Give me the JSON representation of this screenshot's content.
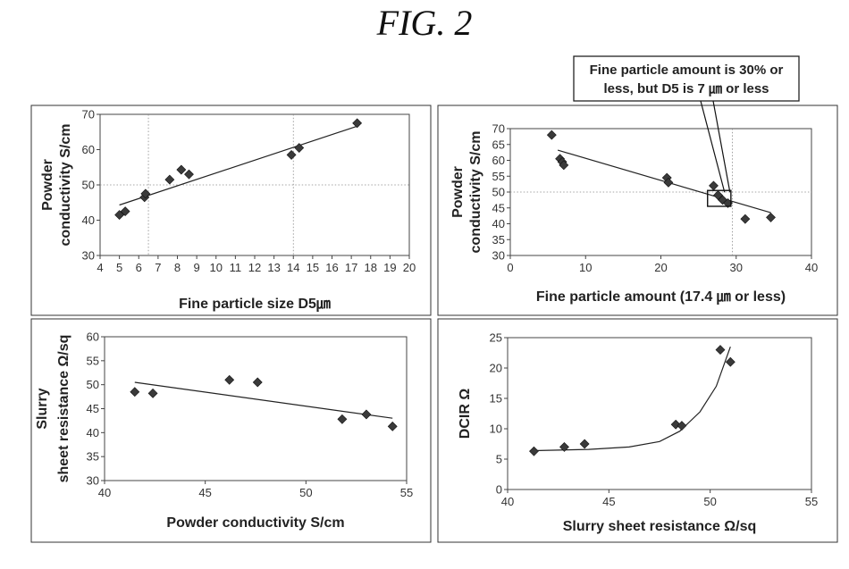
{
  "figure": {
    "title": "FIG. 2"
  },
  "chart_data": [
    {
      "type": "scatter",
      "xlabel": "Fine particle size D5㎛",
      "ylabel": [
        "Powder",
        "conductivity S/cm"
      ],
      "xlim": [
        4,
        20
      ],
      "ylim": [
        30,
        70
      ],
      "xticks": [
        4,
        5,
        6,
        7,
        8,
        9,
        10,
        11,
        12,
        13,
        14,
        15,
        16,
        17,
        18,
        19,
        20
      ],
      "yticks": [
        30,
        40,
        50,
        60,
        70
      ],
      "grid": "dashed at x=6.5, x=14, y=50",
      "trendline": "linear",
      "series": [
        {
          "x": [
            5.0,
            5.3,
            6.3,
            6.35,
            7.6,
            8.2,
            8.6,
            13.9,
            14.3,
            17.3
          ],
          "y": [
            41.5,
            42.5,
            46.5,
            47.5,
            51.5,
            54.3,
            53.0,
            58.5,
            60.5,
            67.5
          ]
        }
      ],
      "trend": [
        [
          5,
          44.3
        ],
        [
          17.4,
          66.8
        ]
      ]
    },
    {
      "type": "scatter",
      "xlabel": "Fine particle amount (17.4 ㎛ or less)",
      "ylabel": [
        "Powder",
        "conductivity S/cm"
      ],
      "xlim": [
        0,
        40
      ],
      "ylim": [
        30,
        70
      ],
      "xticks": [
        0,
        10,
        20,
        30,
        40
      ],
      "yticks": [
        30,
        35,
        40,
        45,
        50,
        55,
        60,
        65,
        70
      ],
      "grid": "dashed at x=29.5, y=50",
      "trendline": "linear",
      "series": [
        {
          "x": [
            5.5,
            6.6,
            6.9,
            7.1,
            20.8,
            21.0,
            27.0,
            27.6,
            28.2,
            28.9,
            31.2,
            34.6
          ],
          "y": [
            68.0,
            60.5,
            59.5,
            58.5,
            54.5,
            53.0,
            52.0,
            49.0,
            47.5,
            46.5,
            41.5,
            42.0
          ]
        }
      ],
      "trend": [
        [
          6.3,
          63.2
        ],
        [
          34.6,
          43.5
        ]
      ],
      "annotation": {
        "lines": [
          "Fine particle amount is 30% or",
          "less, but D5 is 7 ㎛ or less"
        ],
        "box_x": [
          26.2,
          29.3
        ],
        "box_y": [
          45.5,
          50.5
        ]
      }
    },
    {
      "type": "scatter",
      "xlabel": "Powder conductivity S/cm",
      "ylabel": [
        "Slurry",
        "sheet resistance Ω/sq"
      ],
      "xlim": [
        40,
        55
      ],
      "ylim": [
        30,
        60
      ],
      "xticks": [
        40,
        45,
        50,
        55
      ],
      "yticks": [
        30,
        35,
        40,
        45,
        50,
        55,
        60
      ],
      "grid": "none",
      "trendline": "linear",
      "series": [
        {
          "x": [
            41.5,
            42.4,
            46.2,
            47.6,
            51.8,
            53.0,
            54.3
          ],
          "y": [
            48.5,
            48.2,
            51.0,
            50.5,
            42.8,
            43.8,
            41.3
          ]
        }
      ],
      "trend": [
        [
          41.5,
          50.5
        ],
        [
          54.3,
          43.0
        ]
      ]
    },
    {
      "type": "scatter",
      "xlabel": "Slurry sheet resistance Ω/sq",
      "ylabel": [
        "DCIR Ω"
      ],
      "xlim": [
        40,
        55
      ],
      "ylim": [
        0,
        25
      ],
      "xticks": [
        40,
        45,
        50,
        55
      ],
      "yticks": [
        0,
        5,
        10,
        15,
        20,
        25
      ],
      "grid": "none",
      "trendline": "exponential",
      "series": [
        {
          "x": [
            41.3,
            42.8,
            43.8,
            48.3,
            48.6,
            50.5,
            51.0
          ],
          "y": [
            6.3,
            7.0,
            7.5,
            10.7,
            10.5,
            23.0,
            21.0
          ]
        }
      ],
      "trend": [
        [
          41.3,
          6.4
        ],
        [
          44.0,
          6.6
        ],
        [
          46.0,
          7.0
        ],
        [
          47.5,
          7.9
        ],
        [
          48.5,
          9.6
        ],
        [
          49.5,
          12.8
        ],
        [
          50.3,
          17.0
        ],
        [
          51.0,
          23.5
        ]
      ]
    }
  ]
}
